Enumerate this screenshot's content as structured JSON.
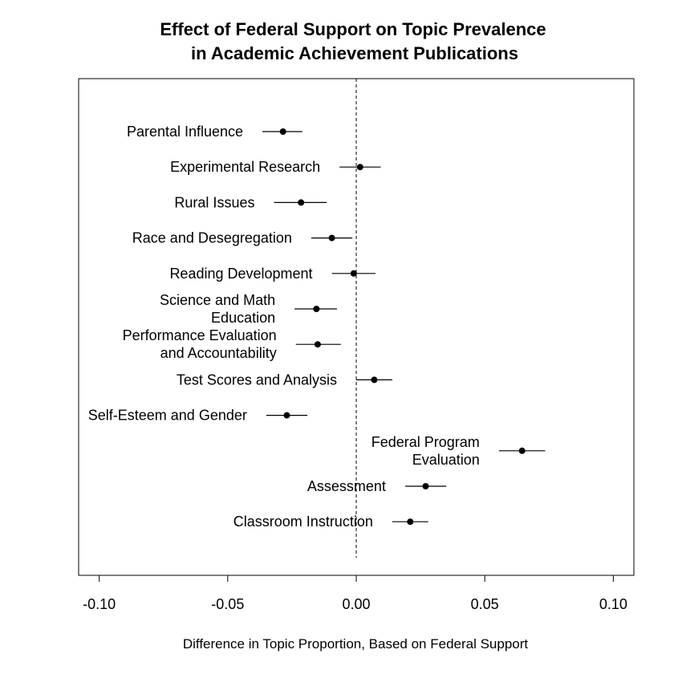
{
  "chart_data": {
    "type": "scatter",
    "title_lines": [
      "Effect of Federal Support on Topic Prevalence",
      "in Academic Achievement Publications"
    ],
    "xlabel": "Difference in Topic Proportion, Based on Federal Support",
    "ylabel": "",
    "xlim": [
      -0.108,
      0.108
    ],
    "x_ticks": [
      -0.1,
      -0.05,
      0.0,
      0.05,
      0.1
    ],
    "x_tick_labels": [
      "-0.10",
      "-0.05",
      "0.00",
      "0.05",
      "0.10"
    ],
    "reference_line": 0,
    "grid": false,
    "points": [
      {
        "label_lines": [
          "Parental Influence"
        ],
        "estimate": -0.0285,
        "lower": -0.0365,
        "upper": -0.021
      },
      {
        "label_lines": [
          "Experimental Research"
        ],
        "estimate": 0.0015,
        "lower": -0.0065,
        "upper": 0.0095
      },
      {
        "label_lines": [
          "Rural Issues"
        ],
        "estimate": -0.0215,
        "lower": -0.032,
        "upper": -0.0115
      },
      {
        "label_lines": [
          "Race and Desegregation"
        ],
        "estimate": -0.0095,
        "lower": -0.0175,
        "upper": -0.0015
      },
      {
        "label_lines": [
          "Reading Development"
        ],
        "estimate": -0.001,
        "lower": -0.0095,
        "upper": 0.0075
      },
      {
        "label_lines": [
          "Science and Math",
          "Education"
        ],
        "estimate": -0.0155,
        "lower": -0.024,
        "upper": -0.0075
      },
      {
        "label_lines": [
          "Performance Evaluation",
          "and Accountability"
        ],
        "estimate": -0.015,
        "lower": -0.0235,
        "upper": -0.006
      },
      {
        "label_lines": [
          "Test Scores and Analysis"
        ],
        "estimate": 0.007,
        "lower": 0.0,
        "upper": 0.014
      },
      {
        "label_lines": [
          "Self-Esteem and Gender"
        ],
        "estimate": -0.027,
        "lower": -0.035,
        "upper": -0.019
      },
      {
        "label_lines": [
          "Federal Program",
          "Evaluation"
        ],
        "estimate": 0.0645,
        "lower": 0.0555,
        "upper": 0.0735
      },
      {
        "label_lines": [
          "Assessment"
        ],
        "estimate": 0.027,
        "lower": 0.019,
        "upper": 0.035
      },
      {
        "label_lines": [
          "Classroom Instruction"
        ],
        "estimate": 0.021,
        "lower": 0.014,
        "upper": 0.028
      }
    ]
  }
}
